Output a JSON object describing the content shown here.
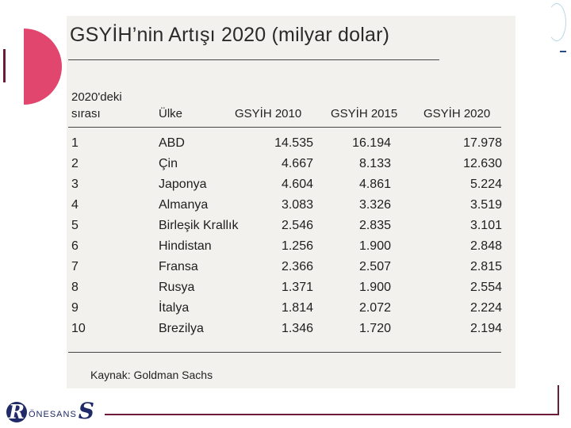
{
  "title": "GSYİH’nin Artışı 2020 (milyar dolar)",
  "headers": {
    "rank_line1": "2020'deki",
    "rank_line2": "sırası",
    "country": "Ülke",
    "gdp2010": "GSYİH 2010",
    "gdp2015": "GSYİH 2015",
    "gdp2020": "GSYİH 2020"
  },
  "rows": [
    {
      "rank": "1",
      "country": "ABD",
      "gdp2010": "14.535",
      "gdp2015": "16.194",
      "gdp2020": "17.978"
    },
    {
      "rank": "2",
      "country": "Çin",
      "gdp2010": "4.667",
      "gdp2015": "8.133",
      "gdp2020": "12.630"
    },
    {
      "rank": "3",
      "country": "Japonya",
      "gdp2010": "4.604",
      "gdp2015": "4.861",
      "gdp2020": "5.224"
    },
    {
      "rank": "4",
      "country": "Almanya",
      "gdp2010": "3.083",
      "gdp2015": "3.326",
      "gdp2020": "3.519"
    },
    {
      "rank": "5",
      "country": "Birleşik Krallık",
      "gdp2010": "2.546",
      "gdp2015": "2.835",
      "gdp2020": "3.101"
    },
    {
      "rank": "6",
      "country": "Hindistan",
      "gdp2010": "1.256",
      "gdp2015": "1.900",
      "gdp2020": "2.848"
    },
    {
      "rank": "7",
      "country": "Fransa",
      "gdp2010": "2.366",
      "gdp2015": "2.507",
      "gdp2020": "2.815"
    },
    {
      "rank": "8",
      "country": "Rusya",
      "gdp2010": "1.371",
      "gdp2015": "1.900",
      "gdp2020": "2.554"
    },
    {
      "rank": "9",
      "country": "İtalya",
      "gdp2010": "1.814",
      "gdp2015": "2.072",
      "gdp2020": "2.224"
    },
    {
      "rank": "10",
      "country": "Brezilya",
      "gdp2010": "1.346",
      "gdp2015": "1.720",
      "gdp2020": "2.194"
    }
  ],
  "source": "Kaynak: Goldman Sachs",
  "logo": {
    "first": "R",
    "middle": "ÖNESANS",
    "last": "S"
  },
  "colors": {
    "accent_circle": "#e0466e",
    "frame_line": "#6e1a3a",
    "logo": "#1f2a66"
  }
}
